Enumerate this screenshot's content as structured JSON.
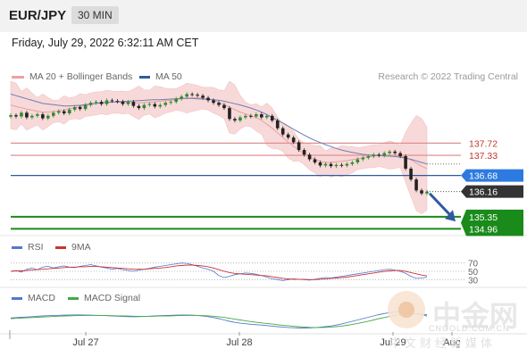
{
  "header": {
    "symbol": "EUR/JPY",
    "timeframe": "30 MIN",
    "datetime": "Friday, July 29, 2022 6:32:11 AM CET"
  },
  "legend": {
    "ma20_label": "MA 20 + Bollinger Bands",
    "ma50_label": "MA 50",
    "credit": "Research © 2022 Trading Central"
  },
  "rsi_legend": {
    "rsi_label": "RSI",
    "ma9_label": "9MA"
  },
  "macd_legend": {
    "macd_label": "MACD",
    "signal_label": "MACD Signal"
  },
  "watermark": {
    "name_cn": "中金网",
    "name_en": "CNGOLD.COM.CN",
    "tagline": "中文财经新媒体"
  },
  "colors": {
    "resistance": "#e09090",
    "pivot": "#2f5aa0",
    "support": "#1a8a1a",
    "bollinger_fill": "#f7d3d3",
    "ma20": "#e8a0a0",
    "ma50": "#6a7fb5",
    "candle_up": "#2e8b2e",
    "candle_down": "#222222",
    "last_price_bg": "#333333",
    "pivot_bg": "#2d7be0",
    "arrow": "#2f5aa0",
    "rsi": "#5577cc",
    "rsi_ma": "#cc3333",
    "macd": "#5577cc",
    "macd_signal": "#44aa44"
  },
  "chart_data": [
    {
      "type": "line",
      "panel": "price",
      "x_labels": [
        "Jul 27",
        "Jul 28",
        "Jul 29",
        "Aug"
      ],
      "levels": {
        "resistance": [
          137.72,
          137.33
        ],
        "pivot": 136.68,
        "last_price": 136.16,
        "support": [
          135.35,
          134.96
        ]
      },
      "ylim": [
        134.8,
        139.6
      ],
      "series": [
        {
          "values": [
            138.62,
            138.58,
            138.7,
            138.55,
            138.6,
            138.65,
            138.52,
            138.6,
            138.7,
            138.75,
            138.68,
            138.8,
            138.88,
            138.82,
            138.95,
            139.02,
            139.05,
            138.98,
            139.1,
            139.08,
            139.06,
            138.98,
            139.05,
            138.92,
            138.85,
            138.95,
            138.98,
            138.9,
            138.95,
            139.02,
            139.05,
            139.15,
            139.22,
            139.3,
            139.28,
            139.25,
            139.18,
            139.1,
            139.02,
            138.95,
            138.85,
            138.5,
            138.45,
            138.55,
            138.6,
            138.58,
            138.65,
            138.55,
            138.6,
            138.45,
            138.2,
            138.0,
            137.9,
            137.75,
            137.5,
            137.35,
            137.2,
            137.1,
            137.0,
            137.05,
            136.98,
            137.02,
            137.0,
            137.05,
            137.1,
            137.2,
            137.25,
            137.3,
            137.35,
            137.32,
            137.4,
            137.45,
            137.4,
            137.3,
            136.9,
            136.55,
            136.2,
            136.1,
            136.16
          ]
        },
        {
          "values": [
            138.95,
            138.9,
            138.86,
            138.82,
            138.78,
            138.75,
            138.72,
            138.72,
            138.74,
            138.76,
            138.79,
            138.83,
            138.86,
            138.9,
            138.93,
            138.97,
            139.0,
            139.02,
            139.03,
            139.04,
            139.04,
            139.03,
            139.03,
            139.02,
            139.02,
            139.03,
            139.04,
            139.05,
            139.07,
            139.09,
            139.1,
            139.13,
            139.15,
            139.17,
            139.18,
            139.18,
            139.17,
            139.15,
            139.1,
            139.03,
            138.96,
            138.88,
            138.8,
            138.72,
            138.66,
            138.6,
            138.55,
            138.45,
            138.33,
            138.2,
            138.05,
            137.9,
            137.75,
            137.62,
            137.5,
            137.38,
            137.28,
            137.2,
            137.14,
            137.1,
            137.1,
            137.12,
            137.14,
            137.16,
            137.19,
            137.22,
            137.25,
            137.28,
            137.3,
            137.32,
            137.33,
            137.34,
            137.32,
            137.3,
            137.26,
            137.18,
            137.08,
            136.98,
            136.9
          ]
        },
        {
          "values": [
            139.3,
            139.25,
            139.2,
            139.15,
            139.1,
            139.05,
            139.0,
            138.98,
            138.96,
            138.94,
            138.92,
            138.92,
            138.93,
            138.94,
            138.96,
            138.98,
            139.0,
            139.02,
            139.03,
            139.04,
            139.05,
            139.06,
            139.07,
            139.08,
            139.09,
            139.1,
            139.11,
            139.12,
            139.12,
            139.13,
            139.14,
            139.15,
            139.16,
            139.16,
            139.16,
            139.15,
            139.14,
            139.13,
            139.12,
            139.1,
            139.07,
            139.03,
            138.99,
            138.95,
            138.9,
            138.85,
            138.79,
            138.72,
            138.64,
            138.55,
            138.46,
            138.37,
            138.27,
            138.17,
            138.07,
            137.98,
            137.89,
            137.81,
            137.74,
            137.67,
            137.61,
            137.55,
            137.5,
            137.46,
            137.42,
            137.39,
            137.36,
            137.34,
            137.33,
            137.32,
            137.31,
            137.3,
            137.29,
            137.27,
            137.24,
            137.2,
            137.15,
            137.1,
            137.05
          ]
        }
      ]
    },
    {
      "type": "line",
      "panel": "rsi",
      "y_ticks": [
        70,
        50,
        30
      ],
      "ylim": [
        20,
        80
      ],
      "series": [
        {
          "values": [
            50,
            52,
            48,
            55,
            58,
            54,
            60,
            62,
            58,
            61,
            63,
            60,
            59,
            62,
            64,
            66,
            63,
            60,
            58,
            55,
            57,
            54,
            52,
            50,
            53,
            55,
            57,
            60,
            62,
            64,
            66,
            68,
            70,
            69,
            66,
            62,
            58,
            55,
            50,
            40,
            35,
            38,
            42,
            44,
            46,
            45,
            43,
            40,
            36,
            32,
            30,
            28,
            30,
            32,
            31,
            30,
            29,
            31,
            33,
            35,
            34,
            36,
            38,
            40,
            42,
            44,
            46,
            48,
            50,
            52,
            54,
            55,
            53,
            50,
            45,
            38,
            33,
            34,
            36
          ]
        },
        {
          "values": [
            50,
            51,
            51,
            52,
            53,
            54,
            55,
            56,
            57,
            58,
            59,
            60,
            60,
            61,
            61,
            62,
            62,
            61,
            60,
            59,
            58,
            57,
            56,
            55,
            55,
            55,
            56,
            57,
            58,
            59,
            61,
            63,
            64,
            65,
            65,
            64,
            63,
            61,
            58,
            54,
            50,
            47,
            45,
            44,
            43,
            42,
            41,
            40,
            39,
            37,
            35,
            33,
            32,
            31,
            31,
            31,
            30,
            30,
            31,
            32,
            33,
            34,
            35,
            36,
            38,
            40,
            42,
            44,
            46,
            48,
            50,
            51,
            52,
            52,
            50,
            47,
            44,
            41,
            39
          ]
        }
      ]
    },
    {
      "type": "line",
      "panel": "macd",
      "ylim": [
        -1,
        1
      ],
      "series": [
        {
          "values": [
            0.05,
            0.08,
            0.1,
            0.12,
            0.15,
            0.18,
            0.2,
            0.22,
            0.24,
            0.25,
            0.26,
            0.27,
            0.28,
            0.28,
            0.27,
            0.26,
            0.25,
            0.24,
            0.22,
            0.2,
            0.18,
            0.16,
            0.15,
            0.14,
            0.15,
            0.16,
            0.18,
            0.2,
            0.22,
            0.24,
            0.25,
            0.26,
            0.27,
            0.27,
            0.26,
            0.24,
            0.2,
            0.15,
            0.08,
            0.0,
            -0.1,
            -0.2,
            -0.28,
            -0.34,
            -0.38,
            -0.42,
            -0.45,
            -0.48,
            -0.52,
            -0.56,
            -0.6,
            -0.63,
            -0.66,
            -0.68,
            -0.7,
            -0.7,
            -0.69,
            -0.67,
            -0.64,
            -0.6,
            -0.55,
            -0.48,
            -0.4,
            -0.3,
            -0.2,
            -0.1,
            0.0,
            0.1,
            0.2,
            0.3,
            0.38,
            0.45,
            0.5,
            0.52,
            0.5,
            0.44,
            0.36,
            0.28,
            0.2
          ]
        },
        {
          "values": [
            0.0,
            0.02,
            0.04,
            0.06,
            0.08,
            0.1,
            0.12,
            0.14,
            0.16,
            0.18,
            0.2,
            0.21,
            0.22,
            0.23,
            0.24,
            0.24,
            0.24,
            0.24,
            0.23,
            0.22,
            0.21,
            0.2,
            0.19,
            0.18,
            0.17,
            0.17,
            0.17,
            0.18,
            0.19,
            0.2,
            0.21,
            0.22,
            0.23,
            0.24,
            0.24,
            0.24,
            0.23,
            0.21,
            0.18,
            0.14,
            0.09,
            0.03,
            -0.04,
            -0.1,
            -0.16,
            -0.22,
            -0.27,
            -0.32,
            -0.36,
            -0.41,
            -0.45,
            -0.49,
            -0.53,
            -0.57,
            -0.6,
            -0.63,
            -0.65,
            -0.66,
            -0.66,
            -0.65,
            -0.63,
            -0.6,
            -0.56,
            -0.5,
            -0.44,
            -0.36,
            -0.28,
            -0.19,
            -0.1,
            0.0,
            0.08,
            0.16,
            0.24,
            0.3,
            0.34,
            0.36,
            0.36,
            0.34,
            0.3
          ]
        }
      ]
    }
  ]
}
